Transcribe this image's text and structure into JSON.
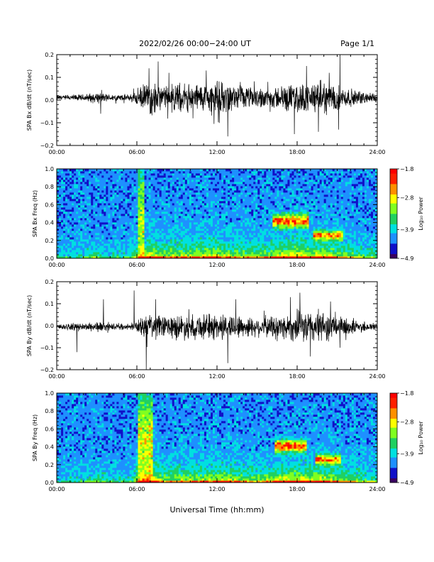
{
  "header": {
    "title": "2022/02/26  00:00−24:00 UT",
    "page": "Page 1/1"
  },
  "x_axis_label": "Universal Time (hh:mm)",
  "x_tick_labels": [
    "00:00",
    "06:00",
    "12:00",
    "18:00",
    "24:00"
  ],
  "colors": {
    "trace": "#000000",
    "spectrogram_scale": [
      "#3a0060",
      "#1010c8",
      "#1e90ff",
      "#00e0e0",
      "#20d060",
      "#80ff20",
      "#ffff00",
      "#ff9000",
      "#ff2000",
      "#ff0000"
    ]
  },
  "chart_data": [
    {
      "type": "line",
      "ylabel": "SPA Bx dB/dt (nT/sec)",
      "xlim": [
        0,
        24
      ],
      "ylim": [
        -0.2,
        0.2
      ],
      "yticks": [
        -0.2,
        -0.1,
        0.0,
        0.1,
        0.2
      ],
      "ytick_labels": [
        "−0.2",
        "−0.1",
        "0.0",
        "0.1",
        "0.2"
      ],
      "x_unit": "hours UT",
      "baseline": 0.01,
      "envelope": {
        "x": [
          0,
          2,
          3,
          4,
          5.5,
          6,
          7,
          8,
          9,
          10,
          11,
          12,
          13,
          14,
          15,
          16,
          17,
          18,
          19,
          20,
          21,
          22,
          23,
          24
        ],
        "amp": [
          0.01,
          0.012,
          0.02,
          0.012,
          0.012,
          0.03,
          0.06,
          0.04,
          0.05,
          0.05,
          0.05,
          0.06,
          0.045,
          0.04,
          0.035,
          0.035,
          0.045,
          0.05,
          0.05,
          0.06,
          0.045,
          0.03,
          0.02,
          0.015
        ]
      },
      "spikes": [
        {
          "x": 3.3,
          "y": -0.06
        },
        {
          "x": 6.9,
          "y": 0.14
        },
        {
          "x": 7.6,
          "y": 0.17
        },
        {
          "x": 8.4,
          "y": 0.12
        },
        {
          "x": 11.2,
          "y": 0.13
        },
        {
          "x": 12.8,
          "y": -0.16
        },
        {
          "x": 15.8,
          "y": 0.08
        },
        {
          "x": 17.8,
          "y": -0.15
        },
        {
          "x": 18.7,
          "y": 0.15
        },
        {
          "x": 19.6,
          "y": -0.14
        },
        {
          "x": 21.2,
          "y": 0.2
        },
        {
          "x": 21.1,
          "y": -0.13
        },
        {
          "x": 20.4,
          "y": 0.12
        }
      ]
    },
    {
      "type": "heatmap",
      "ylabel": "SPA Bx Freq (Hz)",
      "xlim": [
        0,
        24
      ],
      "ylim": [
        0,
        1.0
      ],
      "yticks": [
        0.0,
        0.2,
        0.4,
        0.6,
        0.8,
        1.0
      ],
      "ytick_labels": [
        "0.0",
        "0.2",
        "0.4",
        "0.6",
        "0.8",
        "1.0"
      ],
      "colorbar_label": "Log₁₀ Power",
      "colorbar_range": [
        -4.9,
        -1.8
      ],
      "colorbar_ticks": [
        -4.9,
        -3.9,
        -2.8,
        -1.8
      ],
      "colorbar_tick_labels": [
        "−4.9",
        "−3.9",
        "−2.8",
        "−1.8"
      ],
      "activity": {
        "x": [
          0,
          2,
          3,
          4,
          5.5,
          6,
          7,
          8,
          9,
          10,
          11,
          12,
          13,
          14,
          15,
          16,
          17,
          18,
          19,
          20,
          21,
          22,
          23,
          24
        ],
        "level": [
          0.2,
          0.25,
          0.35,
          0.25,
          0.25,
          0.55,
          0.8,
          0.6,
          0.65,
          0.65,
          0.7,
          0.75,
          0.6,
          0.55,
          0.55,
          0.6,
          0.75,
          0.8,
          0.7,
          0.75,
          0.6,
          0.5,
          0.4,
          0.35
        ]
      },
      "features": [
        {
          "x0": 16.2,
          "x1": 18.8,
          "f": 0.42,
          "df": 0.07,
          "v": 0.75
        },
        {
          "x0": 19.2,
          "x1": 21.5,
          "f": 0.26,
          "df": 0.05,
          "v": 0.65
        },
        {
          "x0": 6.1,
          "x1": 6.5,
          "f": 0.5,
          "df": 0.5,
          "v": 0.45
        }
      ]
    },
    {
      "type": "line",
      "ylabel": "SPA By dB/dt (nT/sec)",
      "xlim": [
        0,
        24
      ],
      "ylim": [
        -0.2,
        0.2
      ],
      "yticks": [
        -0.2,
        -0.1,
        0.0,
        0.1,
        0.2
      ],
      "ytick_labels": [
        "−0.2",
        "−0.1",
        "0.0",
        "0.1",
        "0.2"
      ],
      "x_unit": "hours UT",
      "baseline": -0.005,
      "envelope": {
        "x": [
          0,
          2,
          3,
          4,
          5.5,
          6,
          7,
          8,
          9,
          10,
          11,
          12,
          13,
          14,
          15,
          16,
          17,
          18,
          19,
          20,
          21,
          22,
          23,
          24
        ],
        "amp": [
          0.012,
          0.012,
          0.02,
          0.012,
          0.01,
          0.025,
          0.05,
          0.04,
          0.045,
          0.045,
          0.045,
          0.05,
          0.045,
          0.04,
          0.035,
          0.04,
          0.045,
          0.055,
          0.06,
          0.055,
          0.04,
          0.03,
          0.02,
          0.015
        ]
      },
      "spikes": [
        {
          "x": 1.5,
          "y": -0.12
        },
        {
          "x": 3.5,
          "y": 0.12
        },
        {
          "x": 5.8,
          "y": 0.16
        },
        {
          "x": 6.7,
          "y": -0.21
        },
        {
          "x": 7.4,
          "y": 0.12
        },
        {
          "x": 12.8,
          "y": -0.17
        },
        {
          "x": 13.4,
          "y": 0.12
        },
        {
          "x": 17.5,
          "y": 0.13
        },
        {
          "x": 18.2,
          "y": 0.15
        },
        {
          "x": 19.0,
          "y": -0.14
        },
        {
          "x": 20.5,
          "y": 0.11
        },
        {
          "x": 21.2,
          "y": -0.1
        }
      ]
    },
    {
      "type": "heatmap",
      "ylabel": "SPA By Freq (Hz)",
      "xlim": [
        0,
        24
      ],
      "ylim": [
        0,
        1.0
      ],
      "yticks": [
        0.0,
        0.2,
        0.4,
        0.6,
        0.8,
        1.0
      ],
      "ytick_labels": [
        "0.0",
        "0.2",
        "0.4",
        "0.6",
        "0.8",
        "1.0"
      ],
      "colorbar_label": "Log₁₀ Power",
      "colorbar_range": [
        -4.9,
        -1.8
      ],
      "colorbar_ticks": [
        -4.9,
        -3.9,
        -2.8,
        -1.8
      ],
      "colorbar_tick_labels": [
        "−4.9",
        "−3.9",
        "−2.8",
        "−1.8"
      ],
      "activity": {
        "x": [
          0,
          2,
          3,
          4,
          5.5,
          6,
          7,
          8,
          9,
          10,
          11,
          12,
          13,
          14,
          15,
          16,
          17,
          18,
          19,
          20,
          21,
          22,
          23,
          24
        ],
        "level": [
          0.2,
          0.25,
          0.35,
          0.25,
          0.2,
          0.55,
          0.8,
          0.55,
          0.6,
          0.6,
          0.65,
          0.7,
          0.65,
          0.6,
          0.55,
          0.6,
          0.75,
          0.8,
          0.7,
          0.75,
          0.6,
          0.5,
          0.4,
          0.35
        ]
      },
      "features": [
        {
          "x0": 16.3,
          "x1": 18.7,
          "f": 0.41,
          "df": 0.06,
          "v": 0.8
        },
        {
          "x0": 19.3,
          "x1": 21.2,
          "f": 0.26,
          "df": 0.05,
          "v": 0.65
        },
        {
          "x0": 6.1,
          "x1": 7.2,
          "f": 0.5,
          "df": 0.5,
          "v": 0.5
        }
      ]
    }
  ]
}
